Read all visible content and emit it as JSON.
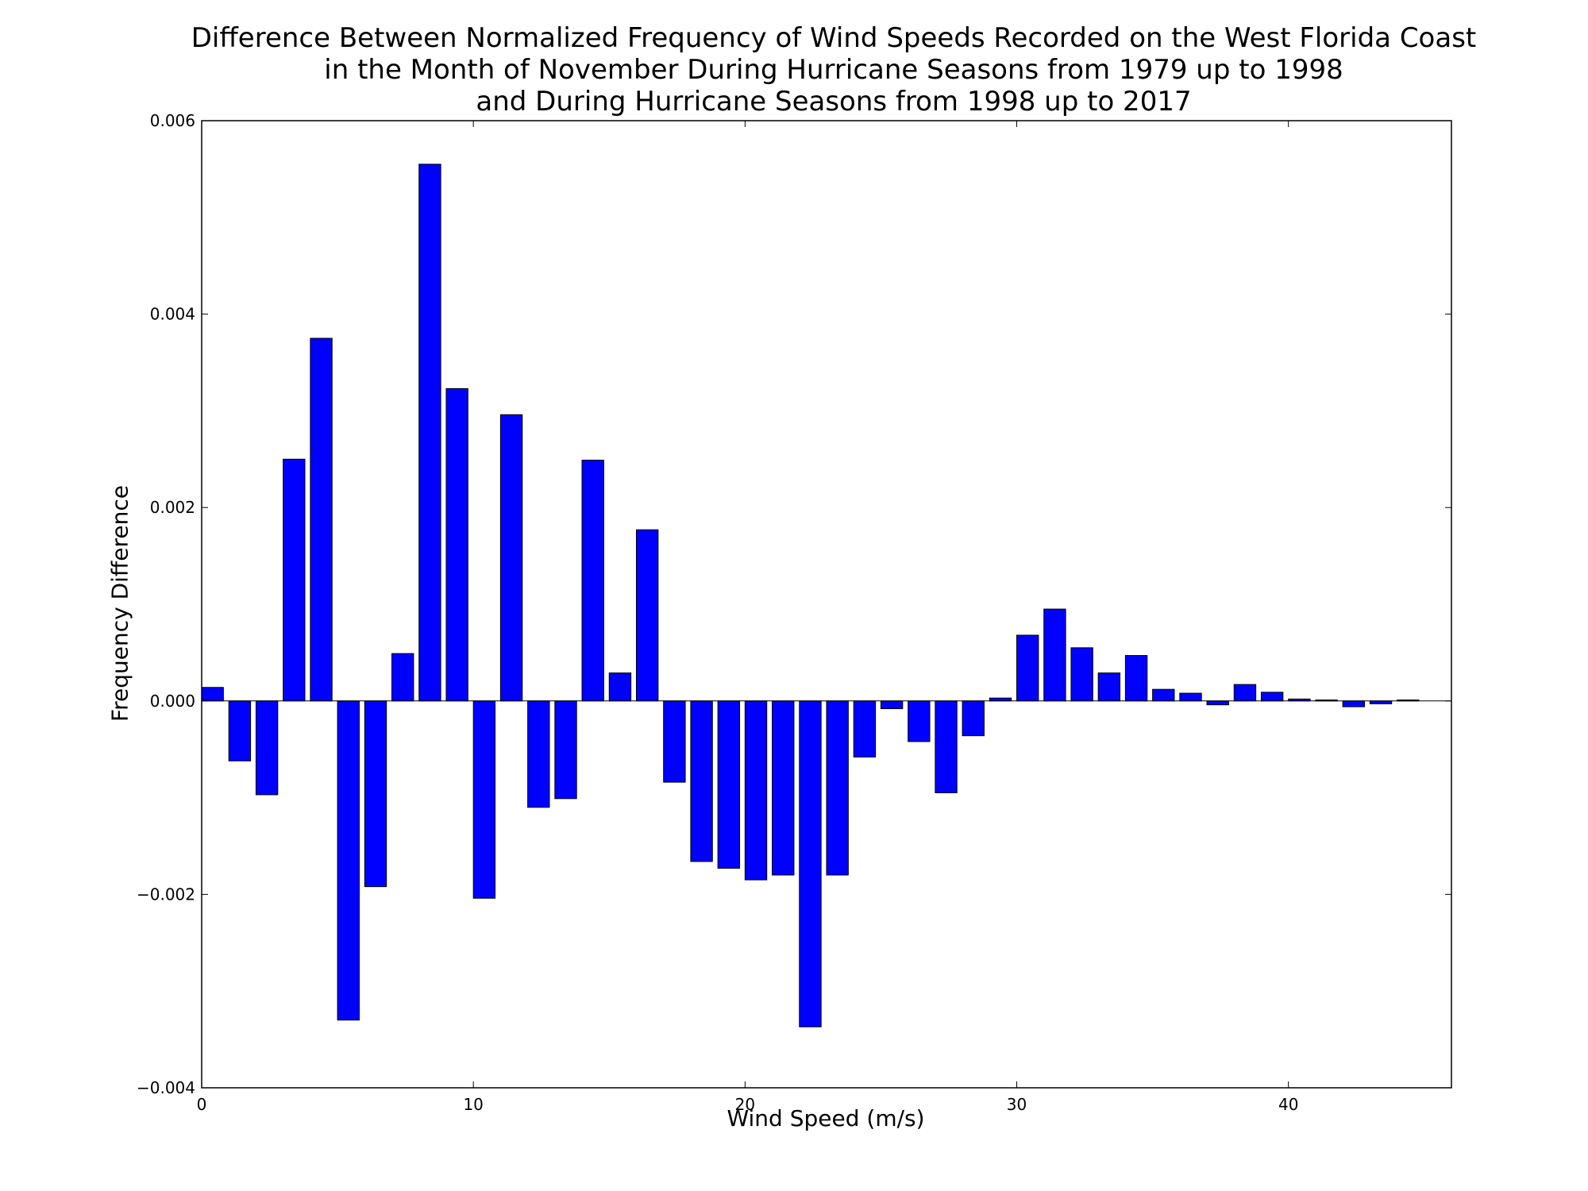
{
  "chart_data": {
    "type": "bar",
    "title": [
      "Difference Between Normalized Frequency of Wind Speeds Recorded on the West Florida Coast",
      "in the Month of November During Hurricane Seasons from 1979 up to 1998",
      "and During Hurricane Seasons from 1998 up to 2017"
    ],
    "xlabel": "Wind Speed (m/s)",
    "ylabel": "Frequency Difference",
    "xlim": [
      0,
      46
    ],
    "ylim": [
      -0.004,
      0.006
    ],
    "xticks": [
      0,
      10,
      20,
      30,
      40
    ],
    "xtick_labels": [
      "0",
      "10",
      "20",
      "30",
      "40"
    ],
    "yticks": [
      -0.004,
      -0.002,
      0.0,
      0.002,
      0.004,
      0.006
    ],
    "ytick_labels": [
      "−0.004",
      "−0.002",
      "0.000",
      "0.002",
      "0.004",
      "0.006"
    ],
    "grid": false,
    "bar_color": "#0000ff",
    "x": [
      0,
      1,
      2,
      3,
      4,
      5,
      6,
      7,
      8,
      9,
      10,
      11,
      12,
      13,
      14,
      15,
      16,
      17,
      18,
      19,
      20,
      21,
      22,
      23,
      24,
      25,
      26,
      27,
      28,
      29,
      30,
      31,
      32,
      33,
      34,
      35,
      36,
      37,
      38,
      39,
      40,
      41,
      42,
      43,
      44
    ],
    "values": [
      0.00014,
      -0.00062,
      -0.00097,
      0.0025,
      0.00375,
      -0.0033,
      -0.00192,
      0.00049,
      0.00555,
      0.00323,
      -0.00204,
      0.00296,
      -0.0011,
      -0.00101,
      0.00249,
      0.00029,
      0.00177,
      -0.00084,
      -0.00166,
      -0.00173,
      -0.00185,
      -0.0018,
      -0.00337,
      -0.0018,
      -0.00058,
      -8e-05,
      -0.00042,
      -0.00095,
      -0.00036,
      3e-05,
      0.00068,
      0.00095,
      0.00055,
      0.00029,
      0.00047,
      0.00012,
      8e-05,
      -4e-05,
      0.00017,
      9e-05,
      2e-05,
      1e-05,
      -6e-05,
      -3e-05,
      1e-05
    ]
  }
}
